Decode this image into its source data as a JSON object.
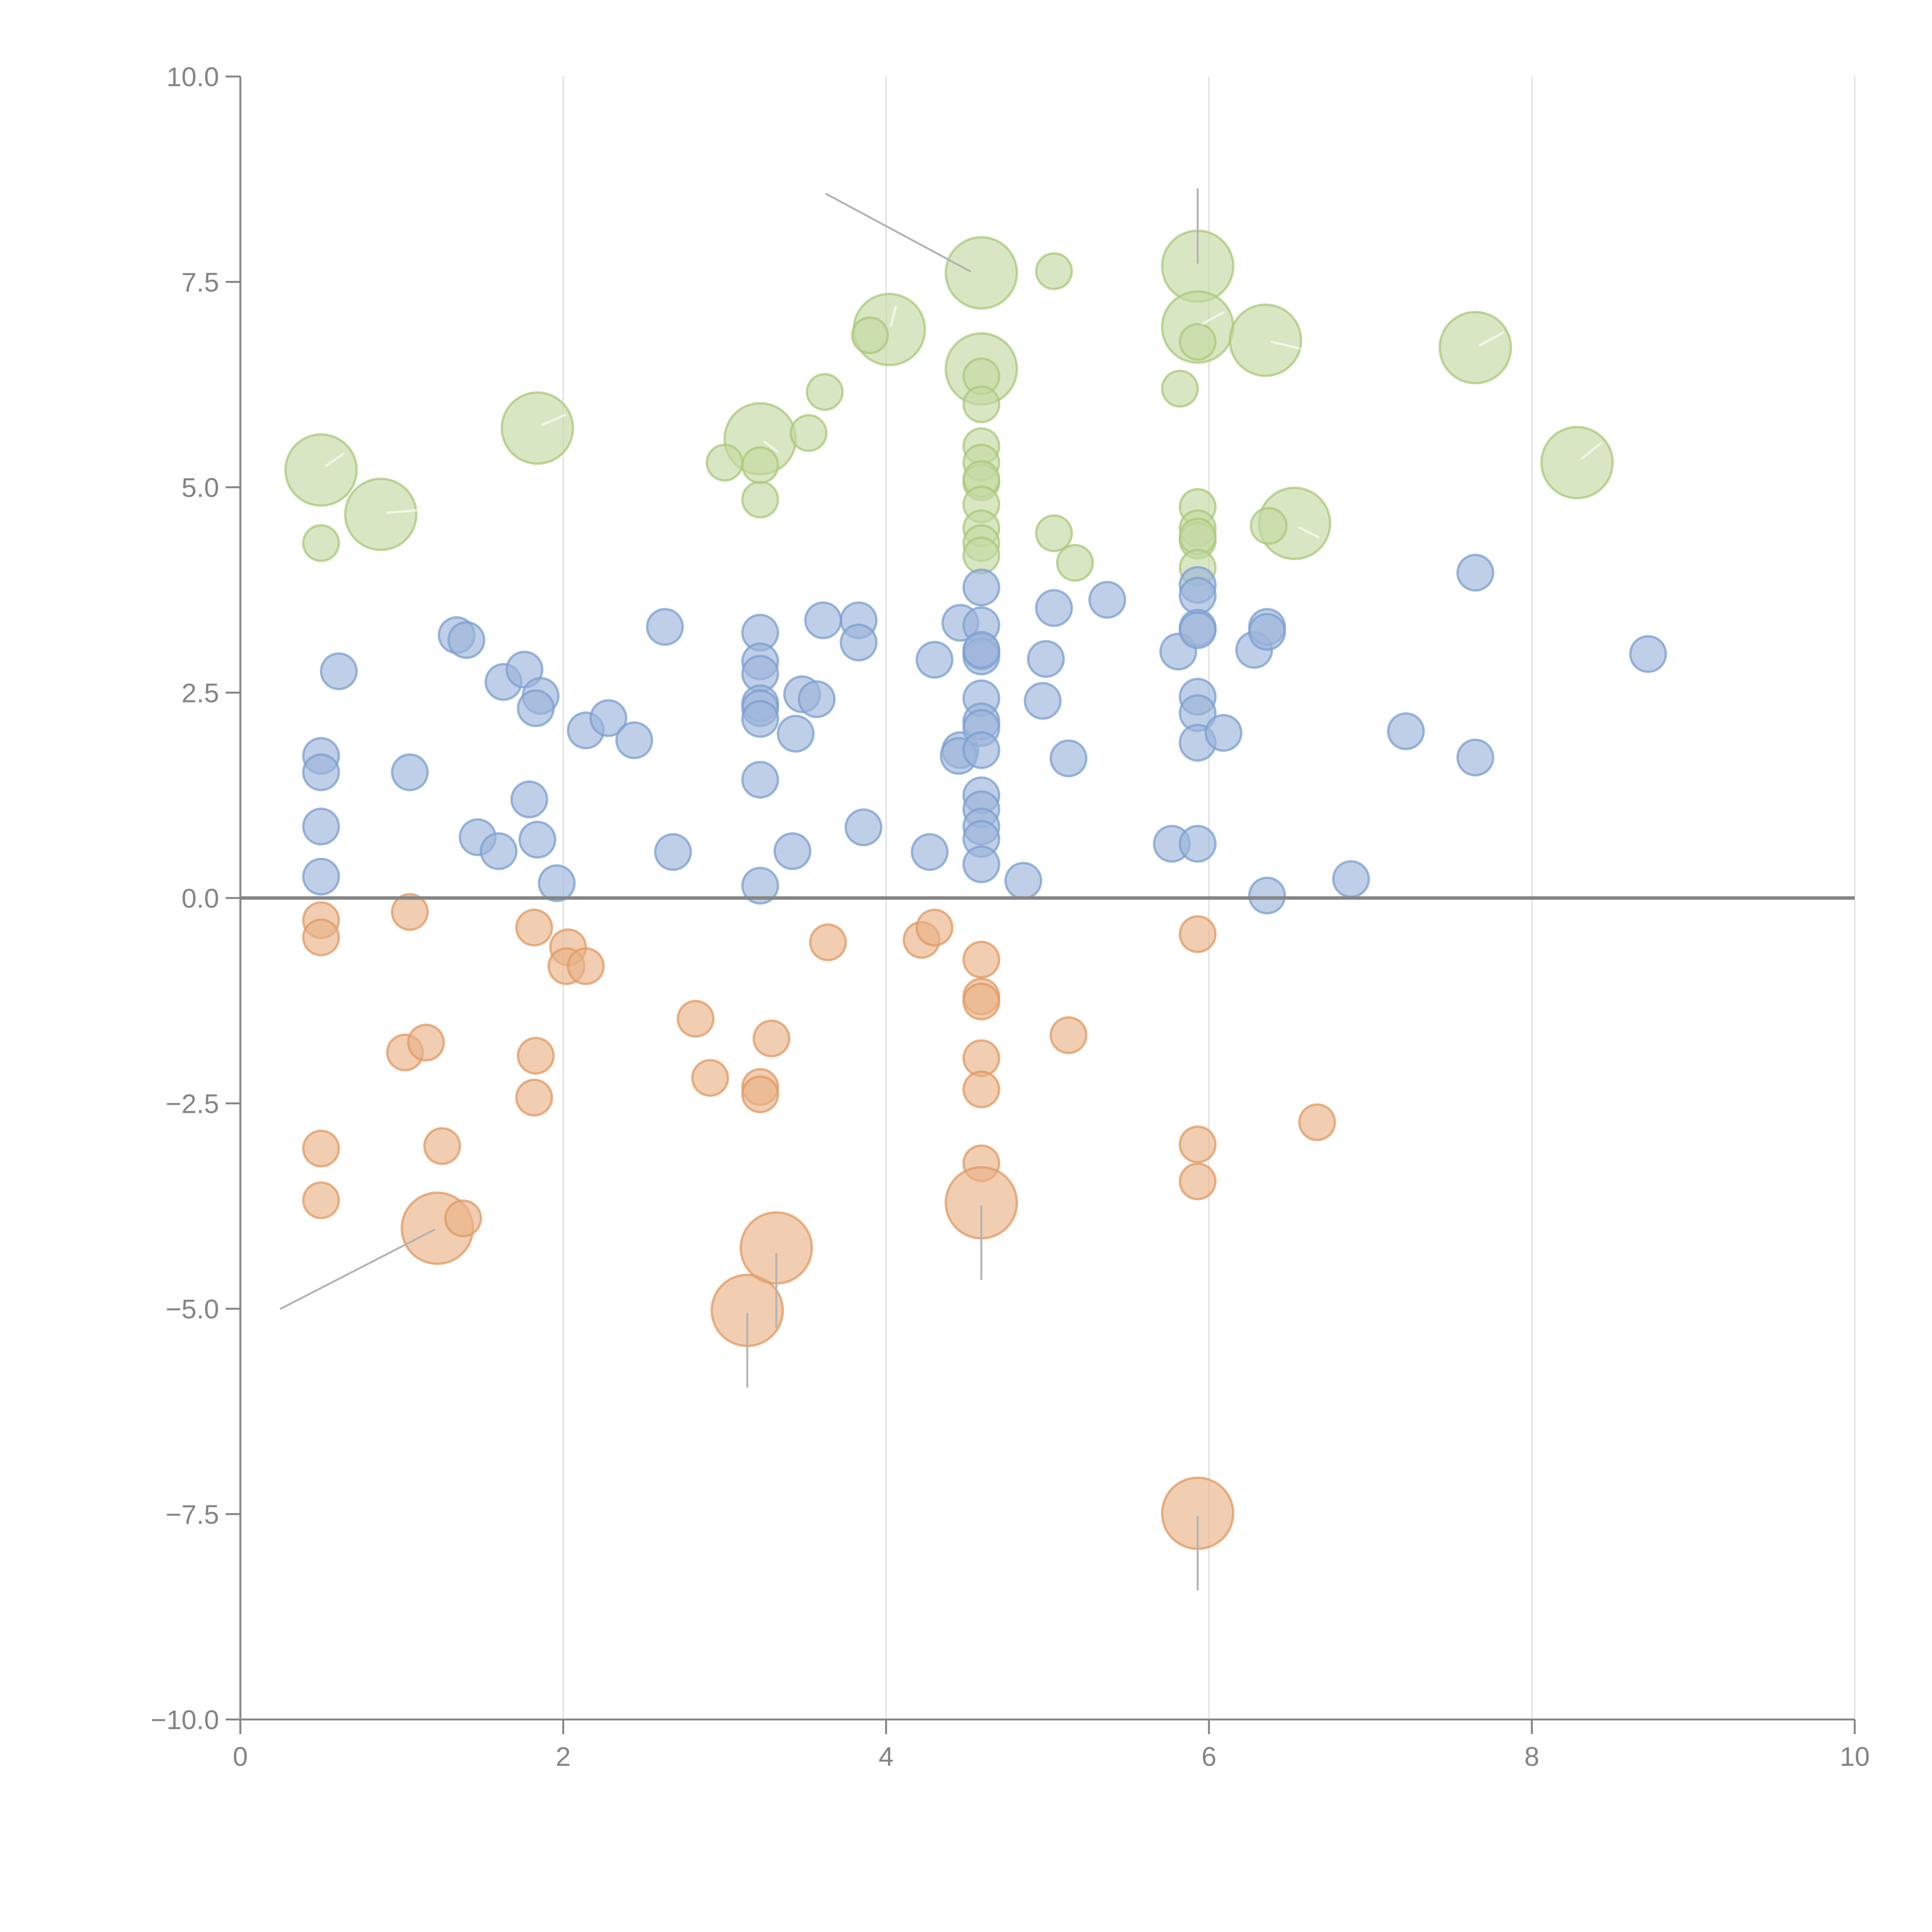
{
  "chart_data": {
    "type": "scatter",
    "title": "",
    "xlabel": "",
    "ylabel": "",
    "xlim": [
      0,
      10
    ],
    "ylim": [
      -10,
      10
    ],
    "grid": "vertical",
    "legend": "none",
    "x_ticks": [
      "0",
      "2",
      "4",
      "6",
      "8",
      "10"
    ],
    "x_tick_values": [
      0,
      2,
      4,
      6,
      8,
      10
    ],
    "y_ticks": [
      "10.0",
      "7.5",
      "5.0",
      "2.5",
      "0.0",
      "−2.5",
      "−5.0",
      "−7.5",
      "−10.0"
    ],
    "y_tick_values": [
      10,
      7.5,
      5,
      2.5,
      0,
      -2.5,
      -5,
      -7.5,
      -10
    ],
    "size_note": "size 1 = small bubble, 2 = large bubble",
    "series": [
      {
        "name": "green",
        "fill": "#c4d9a3",
        "stroke": "#a9c87a",
        "points": [
          [
            0.5,
            5.21,
            2
          ],
          [
            0.87,
            4.67,
            2
          ],
          [
            0.5,
            4.32,
            1
          ],
          [
            1.84,
            5.72,
            2
          ],
          [
            3.22,
            5.59,
            2
          ],
          [
            3.0,
            5.3,
            1
          ],
          [
            3.22,
            4.85,
            1
          ],
          [
            3.22,
            5.27,
            1
          ],
          [
            3.52,
            5.66,
            1
          ],
          [
            3.62,
            6.16,
            1
          ],
          [
            4.02,
            6.92,
            2
          ],
          [
            3.9,
            6.85,
            1
          ],
          [
            4.59,
            7.61,
            2
          ],
          [
            5.04,
            7.63,
            1
          ],
          [
            4.59,
            6.44,
            2
          ],
          [
            4.59,
            6.35,
            1
          ],
          [
            4.59,
            6.01,
            1
          ],
          [
            4.59,
            5.5,
            1
          ],
          [
            4.59,
            5.3,
            1
          ],
          [
            4.59,
            5.06,
            1
          ],
          [
            4.59,
            5.1,
            1
          ],
          [
            4.59,
            4.79,
            1
          ],
          [
            4.59,
            4.5,
            1
          ],
          [
            4.59,
            4.32,
            1
          ],
          [
            4.59,
            4.17,
            1
          ],
          [
            5.04,
            4.44,
            1
          ],
          [
            5.17,
            4.08,
            1
          ],
          [
            5.93,
            7.69,
            2
          ],
          [
            5.93,
            6.95,
            2
          ],
          [
            5.93,
            6.77,
            1
          ],
          [
            5.82,
            6.2,
            1
          ],
          [
            6.35,
            6.79,
            2
          ],
          [
            7.65,
            6.7,
            2
          ],
          [
            8.28,
            5.3,
            2
          ],
          [
            6.53,
            4.56,
            2
          ],
          [
            6.37,
            4.53,
            1
          ],
          [
            5.93,
            4.76,
            1
          ],
          [
            5.93,
            4.5,
            1
          ],
          [
            5.93,
            4.35,
            1
          ],
          [
            5.93,
            4.4,
            1
          ],
          [
            5.93,
            4.02,
            1
          ]
        ]
      },
      {
        "name": "blue",
        "fill": "#9db6da",
        "stroke": "#7b9fd0",
        "points": [
          [
            0.5,
            1.73,
            1
          ],
          [
            0.5,
            1.53,
            1
          ],
          [
            0.5,
            0.87,
            1
          ],
          [
            0.5,
            0.26,
            1
          ],
          [
            0.61,
            2.76,
            1
          ],
          [
            1.05,
            1.53,
            1
          ],
          [
            1.34,
            3.2,
            1
          ],
          [
            1.4,
            3.14,
            1
          ],
          [
            1.47,
            0.74,
            1
          ],
          [
            1.6,
            0.57,
            1
          ],
          [
            1.63,
            2.63,
            1
          ],
          [
            1.76,
            2.78,
            1
          ],
          [
            1.79,
            1.2,
            1
          ],
          [
            1.86,
            2.46,
            1
          ],
          [
            1.83,
            2.31,
            1
          ],
          [
            1.84,
            0.71,
            1
          ],
          [
            1.96,
            0.18,
            1
          ],
          [
            2.14,
            2.04,
            1
          ],
          [
            2.28,
            2.19,
            1
          ],
          [
            2.44,
            1.92,
            1
          ],
          [
            2.63,
            3.3,
            1
          ],
          [
            2.68,
            0.56,
            1
          ],
          [
            3.22,
            3.23,
            1
          ],
          [
            3.22,
            2.88,
            1
          ],
          [
            3.22,
            2.73,
            1
          ],
          [
            3.22,
            2.37,
            1
          ],
          [
            3.22,
            2.31,
            1
          ],
          [
            3.22,
            2.18,
            1
          ],
          [
            3.22,
            1.44,
            1
          ],
          [
            3.22,
            0.15,
            1
          ],
          [
            3.42,
            0.57,
            1
          ],
          [
            3.44,
            2.0,
            1
          ],
          [
            3.48,
            2.48,
            1
          ],
          [
            3.57,
            2.42,
            1
          ],
          [
            3.61,
            3.38,
            1
          ],
          [
            3.83,
            3.38,
            1
          ],
          [
            3.83,
            3.11,
            1
          ],
          [
            3.86,
            0.86,
            1
          ],
          [
            4.27,
            0.56,
            1
          ],
          [
            4.3,
            2.9,
            1
          ],
          [
            4.46,
            3.35,
            1
          ],
          [
            4.46,
            1.8,
            1
          ],
          [
            4.45,
            1.73,
            1
          ],
          [
            4.59,
            3.78,
            1
          ],
          [
            4.59,
            3.32,
            1
          ],
          [
            4.59,
            3.0,
            1
          ],
          [
            4.59,
            2.94,
            1
          ],
          [
            4.59,
            3.02,
            1
          ],
          [
            4.59,
            2.43,
            1
          ],
          [
            4.59,
            2.15,
            1
          ],
          [
            4.59,
            2.07,
            1
          ],
          [
            4.59,
            1.8,
            1
          ],
          [
            4.59,
            1.25,
            1
          ],
          [
            4.59,
            1.08,
            1
          ],
          [
            4.59,
            0.87,
            1
          ],
          [
            4.59,
            0.72,
            1
          ],
          [
            4.59,
            0.41,
            1
          ],
          [
            4.85,
            0.21,
            1
          ],
          [
            4.97,
            2.4,
            1
          ],
          [
            4.99,
            2.91,
            1
          ],
          [
            5.04,
            3.53,
            1
          ],
          [
            5.13,
            1.7,
            1
          ],
          [
            5.37,
            3.63,
            1
          ],
          [
            5.77,
            0.66,
            1
          ],
          [
            5.81,
            3.0,
            1
          ],
          [
            5.93,
            3.81,
            1
          ],
          [
            5.93,
            3.68,
            1
          ],
          [
            5.93,
            3.29,
            1
          ],
          [
            5.93,
            3.26,
            1
          ],
          [
            5.93,
            2.45,
            1
          ],
          [
            5.93,
            2.25,
            1
          ],
          [
            5.93,
            1.89,
            1
          ],
          [
            5.93,
            0.66,
            1
          ],
          [
            6.09,
            2.01,
            1
          ],
          [
            6.28,
            3.02,
            1
          ],
          [
            6.36,
            3.3,
            1
          ],
          [
            6.36,
            3.24,
            1
          ],
          [
            6.36,
            0.03,
            1
          ],
          [
            6.88,
            0.23,
            1
          ],
          [
            7.22,
            2.03,
            1
          ],
          [
            7.65,
            3.96,
            1
          ],
          [
            7.65,
            1.71,
            1
          ],
          [
            8.72,
            2.97,
            1
          ]
        ]
      },
      {
        "name": "orange",
        "fill": "#e9b287",
        "stroke": "#e09a63",
        "points": [
          [
            0.5,
            -0.27,
            1
          ],
          [
            0.5,
            -0.48,
            1
          ],
          [
            0.5,
            -3.05,
            1
          ],
          [
            0.5,
            -3.68,
            1
          ],
          [
            1.05,
            -0.17,
            1
          ],
          [
            1.02,
            -1.88,
            1
          ],
          [
            1.15,
            -1.76,
            1
          ],
          [
            1.25,
            -3.02,
            1
          ],
          [
            1.22,
            -4.02,
            2
          ],
          [
            1.38,
            -3.9,
            1
          ],
          [
            1.82,
            -0.36,
            1
          ],
          [
            1.83,
            -1.92,
            1
          ],
          [
            1.82,
            -2.43,
            1
          ],
          [
            2.03,
            -0.6,
            1
          ],
          [
            2.02,
            -0.83,
            1
          ],
          [
            2.14,
            -0.83,
            1
          ],
          [
            2.82,
            -1.47,
            1
          ],
          [
            2.91,
            -2.19,
            1
          ],
          [
            3.22,
            -2.3,
            1
          ],
          [
            3.22,
            -2.39,
            1
          ],
          [
            3.29,
            -1.71,
            1
          ],
          [
            3.14,
            -5.02,
            2
          ],
          [
            3.32,
            -4.26,
            2
          ],
          [
            3.64,
            -0.54,
            1
          ],
          [
            4.22,
            -0.51,
            1
          ],
          [
            4.3,
            -0.36,
            1
          ],
          [
            4.59,
            -0.75,
            1
          ],
          [
            4.59,
            -1.2,
            1
          ],
          [
            4.59,
            -1.26,
            1
          ],
          [
            4.59,
            -1.95,
            1
          ],
          [
            4.59,
            -2.33,
            1
          ],
          [
            4.59,
            -3.23,
            1
          ],
          [
            4.59,
            -3.71,
            2
          ],
          [
            5.13,
            -1.67,
            1
          ],
          [
            5.93,
            -0.44,
            1
          ],
          [
            5.93,
            -3.0,
            1
          ],
          [
            5.93,
            -3.45,
            1
          ],
          [
            5.93,
            -7.49,
            2
          ],
          [
            6.67,
            -2.73,
            1
          ]
        ]
      }
    ],
    "leader_lines": [
      {
        "color": "#b4b4b4",
        "from": [
          4.52,
          7.63
        ],
        "to": [
          3.63,
          8.57
        ]
      },
      {
        "color": "#b4b4b4",
        "from": [
          5.93,
          7.73
        ],
        "to": [
          5.93,
          8.63
        ]
      },
      {
        "color": "#b4b4b4",
        "from": [
          1.2,
          -4.04
        ],
        "to": [
          0.25,
          -5.0
        ]
      },
      {
        "color": "#b4b4b4",
        "from": [
          3.32,
          -4.33
        ],
        "to": [
          3.32,
          -5.22
        ]
      },
      {
        "color": "#b4b4b4",
        "from": [
          3.14,
          -5.06
        ],
        "to": [
          3.14,
          -5.95
        ]
      },
      {
        "color": "#b4b4b4",
        "from": [
          4.59,
          -3.75
        ],
        "to": [
          4.59,
          -4.64
        ]
      },
      {
        "color": "#b4b4b4",
        "from": [
          5.93,
          -7.53
        ],
        "to": [
          5.93,
          -8.42
        ]
      },
      {
        "color": "#ffffff",
        "from": [
          0.53,
          5.26
        ],
        "to": [
          0.64,
          5.41
        ]
      },
      {
        "color": "#ffffff",
        "from": [
          0.91,
          4.69
        ],
        "to": [
          1.1,
          4.72
        ]
      },
      {
        "color": "#ffffff",
        "from": [
          1.87,
          5.76
        ],
        "to": [
          2.01,
          5.88
        ]
      },
      {
        "color": "#ffffff",
        "from": [
          3.25,
          5.55
        ],
        "to": [
          3.33,
          5.43
        ]
      },
      {
        "color": "#ffffff",
        "from": [
          4.03,
          6.97
        ],
        "to": [
          4.06,
          7.2
        ]
      },
      {
        "color": "#ffffff",
        "from": [
          5.96,
          6.99
        ],
        "to": [
          6.09,
          7.13
        ]
      },
      {
        "color": "#ffffff",
        "from": [
          6.39,
          6.77
        ],
        "to": [
          6.56,
          6.69
        ]
      },
      {
        "color": "#ffffff",
        "from": [
          7.68,
          6.73
        ],
        "to": [
          7.82,
          6.88
        ]
      },
      {
        "color": "#ffffff",
        "from": [
          8.31,
          5.35
        ],
        "to": [
          8.43,
          5.54
        ]
      },
      {
        "color": "#ffffff",
        "from": [
          6.56,
          4.51
        ],
        "to": [
          6.68,
          4.39
        ]
      }
    ]
  }
}
